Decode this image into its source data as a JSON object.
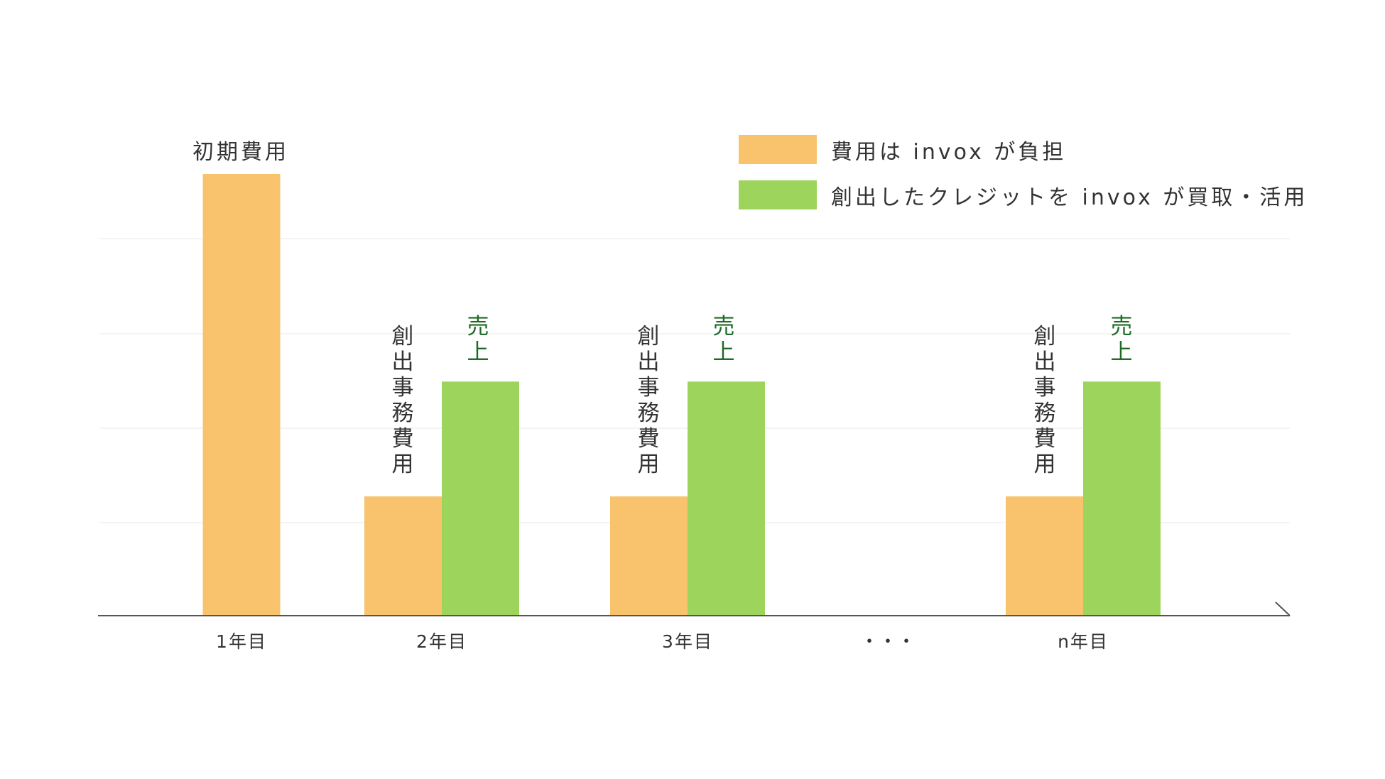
{
  "colors": {
    "cost": "#f8c36c",
    "sales": "#9dd55c",
    "sales_label": "#1e6b26",
    "axis": "#555555",
    "grid": "#f0f0f0"
  },
  "legend": {
    "cost_label": "費用は invox が負担",
    "sales_label": "創出したクレジットを invox が買取・活用"
  },
  "chart_data": {
    "type": "bar",
    "categories": [
      "1年目",
      "2年目",
      "3年目",
      "…",
      "n年目"
    ],
    "ellipsis": "・・・",
    "series": [
      {
        "key": "cost",
        "values": [
          100,
          27,
          27,
          null,
          27
        ]
      },
      {
        "key": "sales",
        "values": [
          null,
          53,
          53,
          null,
          53
        ]
      }
    ],
    "bar_labels": {
      "initial_cost": "初期費用",
      "office_cost": "創出事務費用",
      "sales": "売上"
    },
    "ylim": [
      0,
      100
    ],
    "grid": true,
    "legend_position": "top-right"
  }
}
